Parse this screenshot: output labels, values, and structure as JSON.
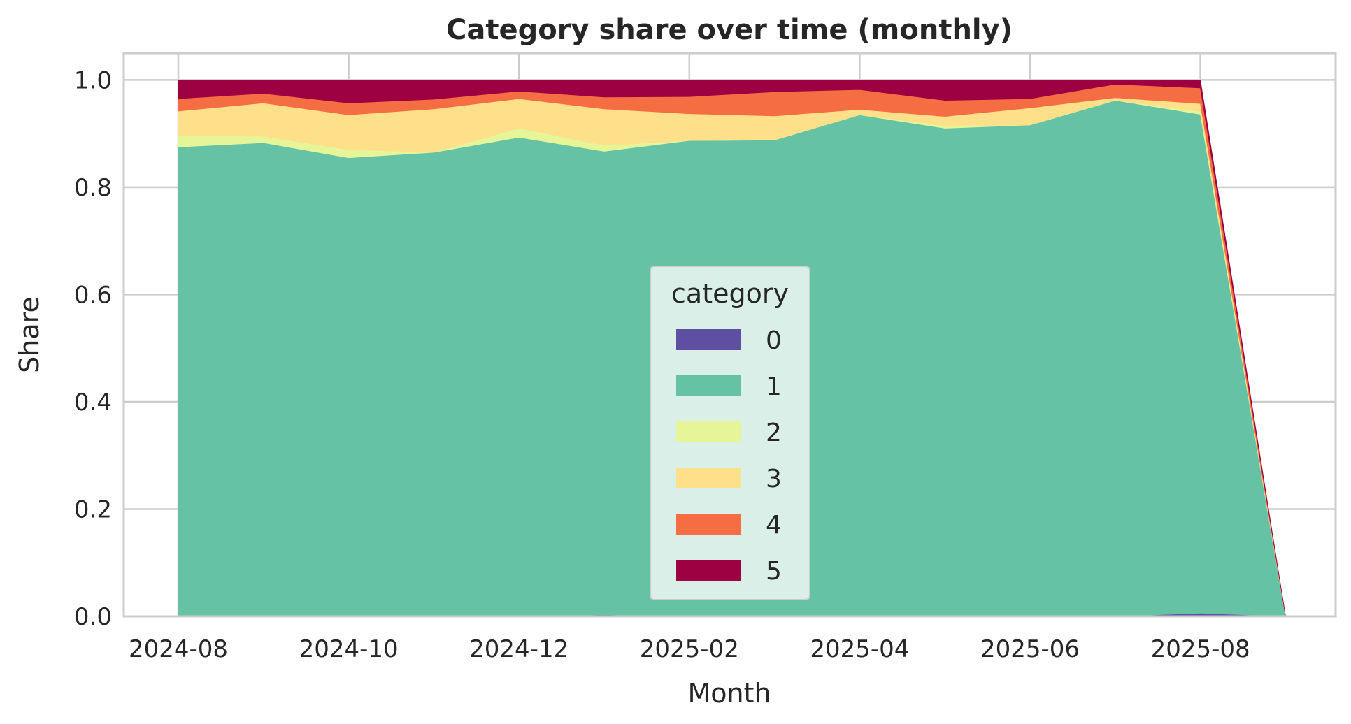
{
  "chart_data": {
    "type": "area",
    "stacked": true,
    "title": "Category share over time (monthly)",
    "xlabel": "Month",
    "ylabel": "Share",
    "x": [
      "2024-08",
      "2024-09",
      "2024-10",
      "2024-11",
      "2024-12",
      "2025-01",
      "2025-02",
      "2025-03",
      "2025-04",
      "2025-05",
      "2025-06",
      "2025-07",
      "2025-08",
      "2025-09"
    ],
    "x_ticks": [
      "2024-08",
      "2024-10",
      "2024-12",
      "2025-02",
      "2025-04",
      "2025-06",
      "2025-08"
    ],
    "y_ticks": [
      "0.0",
      "0.2",
      "0.4",
      "0.6",
      "0.8",
      "1.0"
    ],
    "ylim": [
      0,
      1.05
    ],
    "grid": true,
    "legend": {
      "title": "category",
      "placement": "lower-center"
    },
    "series": [
      {
        "name": "0",
        "color": "#5e4fa2",
        "values": [
          0.0,
          0.0,
          0.0,
          0.0,
          0.0,
          0.003,
          0.0,
          0.0,
          0.0,
          0.0,
          0.0,
          0.0,
          0.006,
          0.0
        ]
      },
      {
        "name": "1",
        "color": "#66c2a5",
        "values": [
          0.875,
          0.883,
          0.855,
          0.865,
          0.893,
          0.864,
          0.887,
          0.888,
          0.935,
          0.91,
          0.916,
          0.962,
          0.93,
          0.0
        ]
      },
      {
        "name": "2",
        "color": "#e6f598",
        "values": [
          0.022,
          0.012,
          0.015,
          0.0,
          0.017,
          0.011,
          0.0,
          0.0,
          0.0,
          0.005,
          0.0,
          0.0,
          0.005,
          0.0
        ]
      },
      {
        "name": "3",
        "color": "#fee08b",
        "values": [
          0.045,
          0.062,
          0.065,
          0.081,
          0.055,
          0.068,
          0.05,
          0.045,
          0.01,
          0.017,
          0.032,
          0.005,
          0.015,
          0.0
        ]
      },
      {
        "name": "4",
        "color": "#f46d43",
        "values": [
          0.023,
          0.018,
          0.022,
          0.018,
          0.014,
          0.022,
          0.032,
          0.045,
          0.037,
          0.03,
          0.017,
          0.025,
          0.029,
          0.0
        ]
      },
      {
        "name": "5",
        "color": "#9e0142",
        "values": [
          0.035,
          0.025,
          0.043,
          0.036,
          0.021,
          0.032,
          0.031,
          0.022,
          0.018,
          0.038,
          0.035,
          0.008,
          0.015,
          0.0
        ]
      }
    ]
  }
}
